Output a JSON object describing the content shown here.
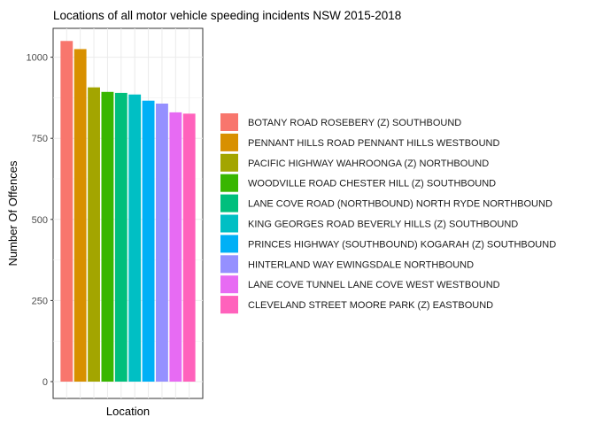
{
  "chart_data": {
    "type": "bar",
    "title": "Locations of all motor vehicle speeding incidents NSW 2015-2018",
    "xlabel": "Location",
    "ylabel": "Number Of Offences",
    "ylim": [
      0,
      1080
    ],
    "yticks": [
      0,
      250,
      500,
      750,
      1000
    ],
    "grid": true,
    "legend_position": "right",
    "categories": [
      "BOTANY ROAD ROSEBERY (Z) SOUTHBOUND",
      "PENNANT HILLS ROAD PENNANT HILLS  WESTBOUND",
      "PACIFIC HIGHWAY WAHROONGA (Z) NORTHBOUND",
      "WOODVILLE ROAD CHESTER HILL (Z) SOUTHBOUND",
      "LANE COVE ROAD (NORTHBOUND) NORTH RYDE NORTHBOUND",
      "KING GEORGES ROAD BEVERLY HILLS (Z) SOUTHBOUND",
      "PRINCES HIGHWAY (SOUTHBOUND) KOGARAH (Z) SOUTHBOUND",
      "HINTERLAND WAY EWINGSDALE NORTHBOUND",
      "LANE COVE TUNNEL LANE COVE WEST WESTBOUND",
      "CLEVELAND STREET MOORE PARK (Z) EASTBOUND"
    ],
    "values": [
      1050,
      1025,
      907,
      893,
      890,
      885,
      866,
      857,
      830,
      826
    ],
    "colors": [
      "#F8766D",
      "#D89000",
      "#A3A500",
      "#39B600",
      "#00BF7D",
      "#00BFC4",
      "#00B0F6",
      "#9590FF",
      "#E76BF3",
      "#FF62BC"
    ]
  }
}
